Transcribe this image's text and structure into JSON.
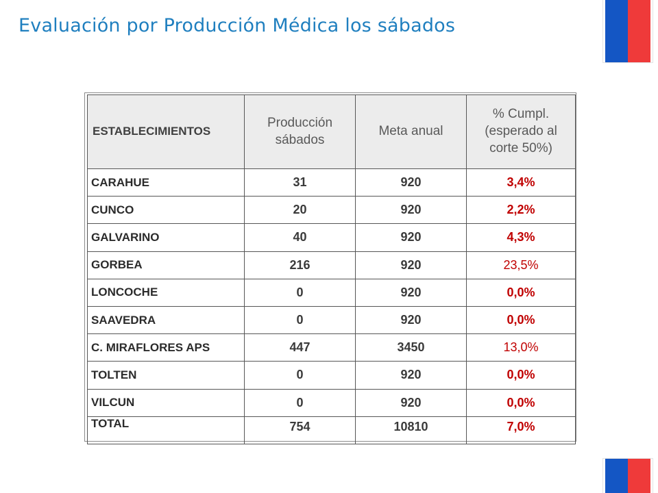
{
  "title": "Evaluación por Producción Médica los sábados",
  "table": {
    "headers": [
      "ESTABLECIMIENTOS",
      "Producción sábados",
      "Meta anual",
      "% Cumpl. (esperado al corte 50%)"
    ],
    "rows": [
      {
        "name": "CARAHUE",
        "produccion": "31",
        "meta": "920",
        "cumpl": "3,4%",
        "bold": true
      },
      {
        "name": "CUNCO",
        "produccion": "20",
        "meta": "920",
        "cumpl": "2,2%",
        "bold": true
      },
      {
        "name": "GALVARINO",
        "produccion": "40",
        "meta": "920",
        "cumpl": "4,3%",
        "bold": true
      },
      {
        "name": "GORBEA",
        "produccion": "216",
        "meta": "920",
        "cumpl": "23,5%",
        "bold": false
      },
      {
        "name": "LONCOCHE",
        "produccion": "0",
        "meta": "920",
        "cumpl": "0,0%",
        "bold": true
      },
      {
        "name": "SAAVEDRA",
        "produccion": "0",
        "meta": "920",
        "cumpl": "0,0%",
        "bold": true
      },
      {
        "name": "C. MIRAFLORES APS",
        "produccion": "447",
        "meta": "3450",
        "cumpl": "13,0%",
        "bold": false
      },
      {
        "name": "TOLTEN",
        "produccion": "0",
        "meta": "920",
        "cumpl": "0,0%",
        "bold": true
      },
      {
        "name": "VILCUN",
        "produccion": "0",
        "meta": "920",
        "cumpl": "0,0%",
        "bold": true
      }
    ],
    "total": {
      "name": "TOTAL",
      "produccion": "754",
      "meta": "10810",
      "cumpl": "7,0%"
    }
  },
  "colors": {
    "title": "#1f7fbf",
    "flag_blue": "#1456c4",
    "flag_red": "#ef3a3a",
    "pct_red": "#c00000"
  }
}
